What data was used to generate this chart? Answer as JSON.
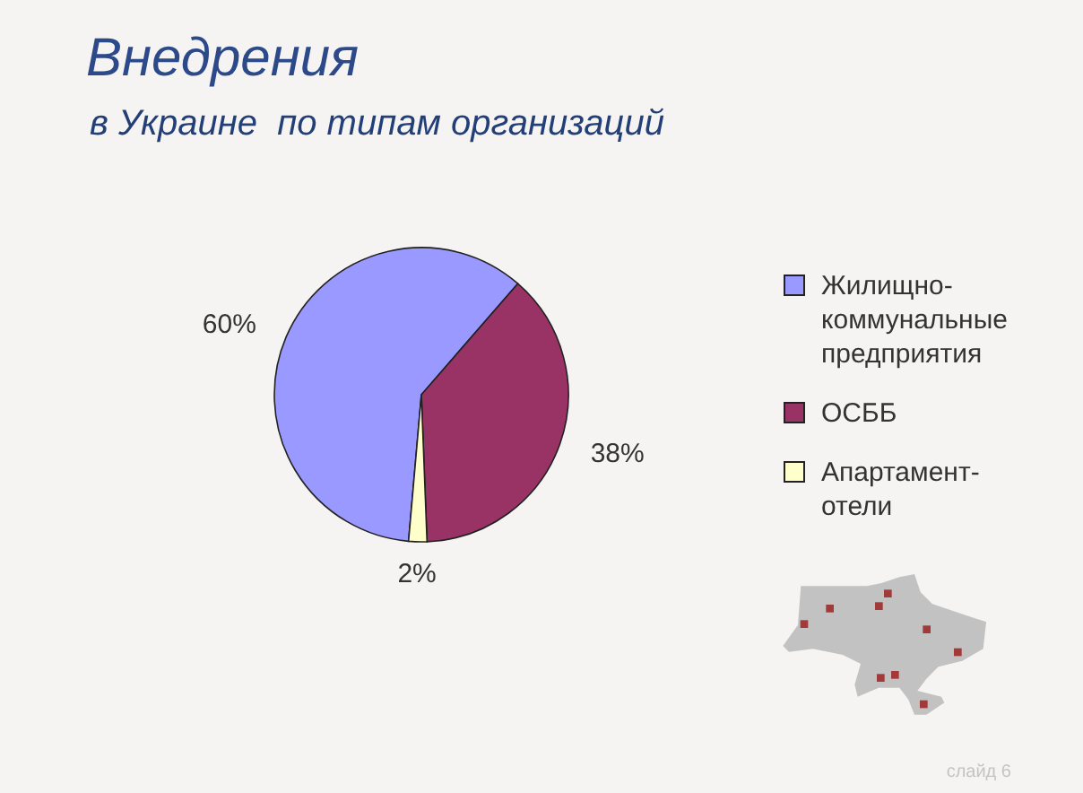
{
  "chart_data": {
    "type": "pie",
    "title": "Внедрения",
    "subtitle": "в Украине  по типам организаций",
    "categories": [
      "Жилищно-коммунальные предприятия",
      "ОСББ",
      "Апартамент-отели"
    ],
    "values": [
      60,
      38,
      2
    ],
    "colors": [
      "#9999ff",
      "#993366",
      "#ffffcc"
    ],
    "value_labels": [
      "60%",
      "38%",
      "2%"
    ],
    "legend": "right",
    "annotations": [
      "слайд 6"
    ]
  }
}
